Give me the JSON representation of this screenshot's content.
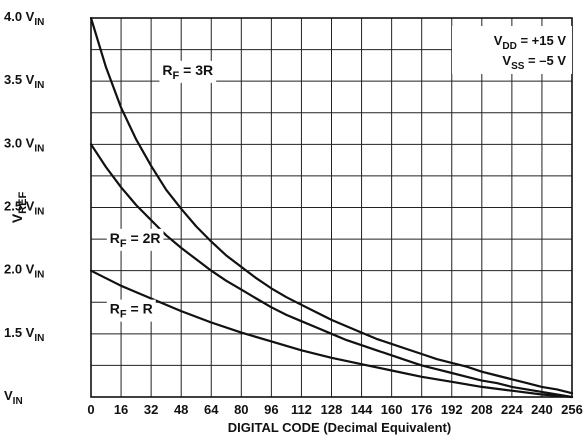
{
  "chart_data": {
    "type": "line",
    "title": "",
    "xlabel": "DIGITAL CODE (Decimal Equivalent)",
    "ylabel": {
      "main": "V",
      "sub": "REF"
    },
    "xlim": [
      0,
      256
    ],
    "ylim": [
      1.0,
      4.0
    ],
    "x_ticks": [
      0,
      16,
      32,
      48,
      64,
      80,
      96,
      112,
      128,
      144,
      160,
      176,
      192,
      208,
      224,
      240,
      256
    ],
    "y_ticks": [
      {
        "value": 1.0,
        "main": "V",
        "sub": "IN"
      },
      {
        "value": 1.5,
        "main": "1.5 V",
        "sub": "IN"
      },
      {
        "value": 2.0,
        "main": "2.0 V",
        "sub": "IN"
      },
      {
        "value": 2.5,
        "main": "2.5 V",
        "sub": "IN"
      },
      {
        "value": 3.0,
        "main": "3.0 V",
        "sub": "IN"
      },
      {
        "value": 3.5,
        "main": "3.5 V",
        "sub": "IN"
      },
      {
        "value": 4.0,
        "main": "4.0 V",
        "sub": "IN"
      }
    ],
    "grid": true,
    "annotations": [
      {
        "parts": [
          {
            "t": "V"
          },
          {
            "t": "DD",
            "sub": true
          },
          {
            "t": " = +15 V"
          }
        ]
      },
      {
        "parts": [
          {
            "t": "V"
          },
          {
            "t": "SS",
            "sub": true
          },
          {
            "t": " = –5 V"
          }
        ]
      }
    ],
    "series": [
      {
        "label_parts": [
          {
            "t": "R"
          },
          {
            "t": "F",
            "sub": true
          },
          {
            "t": " = 3R"
          }
        ],
        "label_anchor": [
          38,
          3.55
        ],
        "x": [
          0,
          8,
          16,
          24,
          32,
          40,
          48,
          56,
          64,
          72,
          80,
          88,
          96,
          104,
          112,
          120,
          128,
          136,
          144,
          152,
          160,
          168,
          176,
          184,
          192,
          200,
          208,
          216,
          224,
          232,
          240,
          248,
          256
        ],
        "values": [
          4.0,
          3.61,
          3.29,
          3.04,
          2.83,
          2.64,
          2.49,
          2.35,
          2.23,
          2.12,
          2.03,
          1.94,
          1.86,
          1.79,
          1.73,
          1.67,
          1.61,
          1.56,
          1.51,
          1.46,
          1.42,
          1.38,
          1.34,
          1.3,
          1.27,
          1.24,
          1.2,
          1.17,
          1.14,
          1.11,
          1.08,
          1.06,
          1.03
        ]
      },
      {
        "label_parts": [
          {
            "t": "R"
          },
          {
            "t": "F",
            "sub": true
          },
          {
            "t": " = 2R"
          }
        ],
        "label_anchor": [
          10,
          2.22
        ],
        "x": [
          0,
          8,
          16,
          24,
          32,
          40,
          48,
          56,
          64,
          72,
          80,
          88,
          96,
          104,
          112,
          120,
          128,
          136,
          144,
          152,
          160,
          168,
          176,
          184,
          192,
          200,
          208,
          216,
          224,
          232,
          240,
          248,
          256
        ],
        "values": [
          3.0,
          2.82,
          2.66,
          2.52,
          2.4,
          2.28,
          2.18,
          2.09,
          2.0,
          1.92,
          1.85,
          1.78,
          1.71,
          1.65,
          1.6,
          1.55,
          1.5,
          1.45,
          1.41,
          1.37,
          1.33,
          1.29,
          1.25,
          1.22,
          1.19,
          1.16,
          1.13,
          1.11,
          1.08,
          1.06,
          1.04,
          1.02,
          1.0
        ]
      },
      {
        "label_parts": [
          {
            "t": "R"
          },
          {
            "t": "F",
            "sub": true
          },
          {
            "t": " = R"
          }
        ],
        "label_anchor": [
          10,
          1.66
        ],
        "x": [
          0,
          16,
          32,
          48,
          64,
          80,
          96,
          112,
          128,
          144,
          160,
          176,
          192,
          208,
          224,
          240,
          256
        ],
        "values": [
          2.0,
          1.88,
          1.78,
          1.68,
          1.59,
          1.51,
          1.44,
          1.37,
          1.31,
          1.26,
          1.21,
          1.16,
          1.12,
          1.08,
          1.05,
          1.02,
          1.0
        ]
      }
    ]
  }
}
